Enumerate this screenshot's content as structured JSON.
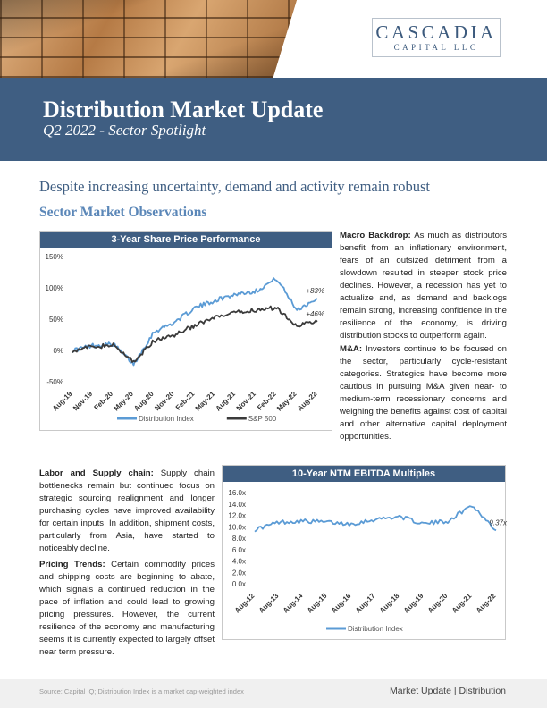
{
  "header": {
    "logo_main": "CASCADIA",
    "logo_sub": "CAPITAL LLC",
    "title": "Distribution Market Update",
    "subtitle": "Q2 2022 - Sector Spotlight"
  },
  "headline": "Despite increasing uncertainty, demand and activity remain robust",
  "section_title": "Sector Market Observations",
  "paragraphs": {
    "macro": {
      "label": "Macro Backdrop:",
      "text": " As much as distributors benefit from an inflationary environment, fears of an outsized detriment from a slowdown resulted in steeper stock price declines. However, a recession has yet to actualize and, as demand and backlogs remain strong, increasing confidence in the resilience of the economy, is driving distribution stocks to outperform again."
    },
    "ma": {
      "label": "M&A:",
      "text": " Investors continue to be focused on the sector, particularly cycle-resistant categories. Strategics have become more cautious in pursuing M&A given near- to medium-term recessionary concerns and weighing the benefits against cost of capital and other alternative capital deployment opportunities."
    },
    "labor": {
      "label": "Labor and Supply chain:",
      "text": " Supply chain bottlenecks remain but continued focus on strategic sourcing realignment and longer purchasing cycles have improved availability for certain inputs. In addition, shipment costs, particularly from Asia, have started to noticeably decline."
    },
    "pricing": {
      "label": "Pricing Trends:",
      "text": " Certain commodity prices and shipping costs are beginning to abate, which signals a continued reduction in the pace of inflation and could lead to growing pricing pressures. However, the current resilience of the economy and manufacturing seems it is currently expected to largely offset near term pressure."
    }
  },
  "chart_data": [
    {
      "type": "line",
      "title": "3-Year Share Price Performance",
      "x": [
        "Aug-19",
        "Nov-19",
        "Feb-20",
        "May-20",
        "Aug-20",
        "Nov-20",
        "Feb-21",
        "May-21",
        "Aug-21",
        "Nov-21",
        "Feb-22",
        "May-22",
        "Aug-22"
      ],
      "ylim": [
        -50,
        150
      ],
      "yticks": [
        "150%",
        "100%",
        "50%",
        "0%",
        "-50%"
      ],
      "series": [
        {
          "name": "Distribution Index",
          "color": "#5b9bd5",
          "values": [
            0,
            8,
            10,
            -22,
            30,
            45,
            68,
            80,
            90,
            95,
            115,
            65,
            83
          ],
          "end_label": "+83%"
        },
        {
          "name": "S&P 500",
          "color": "#3a3a3a",
          "values": [
            0,
            6,
            8,
            -18,
            15,
            25,
            40,
            52,
            60,
            65,
            68,
            40,
            46
          ],
          "end_label": "+46%"
        }
      ],
      "legend": "bottom"
    },
    {
      "type": "line",
      "title": "10-Year NTM EBITDA Multiples",
      "x": [
        "Aug-12",
        "Aug-13",
        "Aug-14",
        "Aug-15",
        "Aug-16",
        "Aug-17",
        "Aug-18",
        "Aug-19",
        "Aug-20",
        "Aug-21",
        "Aug-22"
      ],
      "ylim": [
        0,
        16
      ],
      "yticks": [
        "16.0x",
        "14.0x",
        "12.0x",
        "10.0x",
        "8.0x",
        "6.0x",
        "4.0x",
        "2.0x",
        "0.0x"
      ],
      "series": [
        {
          "name": "Distribution Index",
          "color": "#5b9bd5",
          "values": [
            9.5,
            10.8,
            11.0,
            10.8,
            10.5,
            11.3,
            11.8,
            10.5,
            11.0,
            13.8,
            9.37
          ],
          "end_label": "9.37x"
        }
      ],
      "legend": "bottom"
    }
  ],
  "footer": {
    "source": "Source: Capital IQ; Distribution Index is a market cap-weighted index",
    "right": "Market Update | Distribution"
  }
}
